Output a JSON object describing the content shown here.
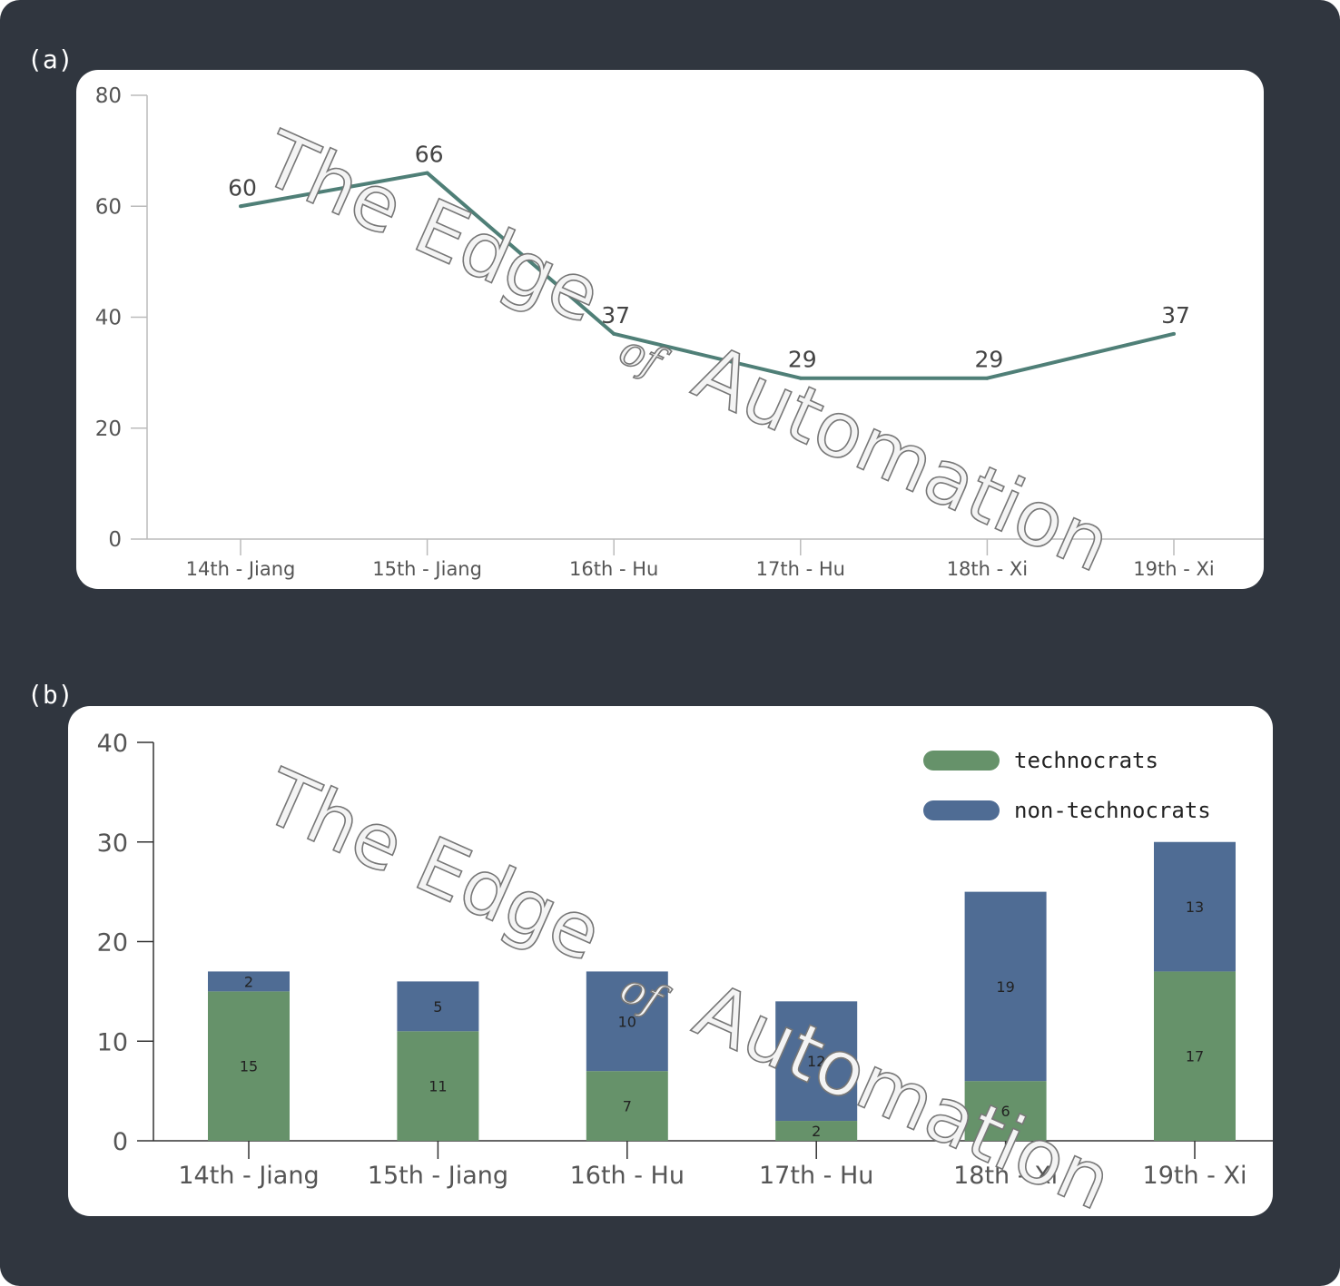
{
  "panels": {
    "a_label": "(a)",
    "b_label": "(b)"
  },
  "watermark": {
    "text_main": "The Edge",
    "text_of": "of",
    "text_end": "Automation"
  },
  "colors": {
    "background": "#30363f",
    "line": "#4f7f77",
    "technocrats": "#66926a",
    "non_technocrats": "#4f6c94"
  },
  "chart_data": [
    {
      "id": "a",
      "type": "line",
      "categories": [
        "14th - Jiang",
        "15th - Jiang",
        "16th - Hu",
        "17th - Hu",
        "18th - Xi",
        "19th - Xi"
      ],
      "values": [
        60,
        66,
        37,
        29,
        29,
        37
      ],
      "data_labels": [
        "60",
        "66",
        "37",
        "29",
        "29",
        "37"
      ],
      "yticks": [
        "0",
        "20",
        "40",
        "60",
        "80"
      ],
      "ylim": [
        0,
        80
      ],
      "grid": false
    },
    {
      "id": "b",
      "type": "bar",
      "stacked": true,
      "categories": [
        "14th - Jiang",
        "15th - Jiang",
        "16th - Hu",
        "17th - Hu",
        "18th - Xi",
        "19th - Xi"
      ],
      "series": [
        {
          "name": "technocrats",
          "values": [
            15,
            11,
            7,
            2,
            6,
            17
          ],
          "labels": [
            "15",
            "11",
            "7",
            "2",
            "6",
            "17"
          ]
        },
        {
          "name": "non-technocrats",
          "values": [
            2,
            5,
            10,
            12,
            19,
            13
          ],
          "labels": [
            "2",
            "5",
            "10",
            "12",
            "19",
            "13"
          ]
        }
      ],
      "yticks": [
        "0",
        "10",
        "20",
        "30",
        "40"
      ],
      "ylim": [
        0,
        40
      ],
      "legend_position": "top-right",
      "grid": false
    }
  ]
}
